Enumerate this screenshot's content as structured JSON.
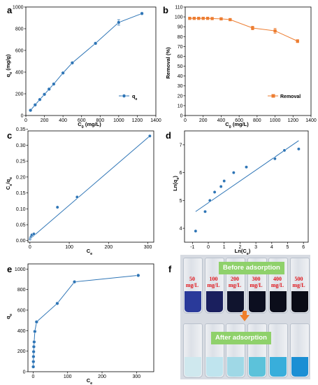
{
  "panels": {
    "a": {
      "letter": "a",
      "xlabel_main": "C",
      "xlabel_sub": "0",
      "xlabel_unit": " (mg/L)",
      "ylabel_main": "q",
      "ylabel_sub": "e",
      "ylabel_unit": " (mg/g)",
      "legend_main": "q",
      "legend_sub": "e"
    },
    "b": {
      "letter": "b",
      "xlabel_main": "C",
      "xlabel_sub": "0",
      "xlabel_unit": " (mg/L)",
      "ylabel": "Removal (%)",
      "legend": "Removal"
    },
    "c": {
      "letter": "c",
      "xlabel_main": "C",
      "xlabel_sub": "e",
      "ylabel_main": "C",
      "ylabel_sub": "e",
      "ylabel_slash": "/q",
      "ylabel_sub2": "e"
    },
    "d": {
      "letter": "d",
      "xlabel": "Ln(C",
      "xlabel_sub": "e",
      "xlabel_end": ")",
      "ylabel": "Ln(q",
      "ylabel_sub": "e",
      "ylabel_end": ")"
    },
    "e": {
      "letter": "e",
      "xlabel_main": "C",
      "xlabel_sub": "e",
      "ylabel_main": "q",
      "ylabel_sub": "e"
    },
    "f": {
      "letter": "f",
      "before_label": "Before adsorption",
      "after_label": "After adsorption",
      "concentrations": [
        "50",
        "100",
        "200",
        "300",
        "400",
        "500"
      ],
      "unit": "mg/L",
      "before_colors": [
        "#2a3a9a",
        "#1a1f5e",
        "#10142e",
        "#0c0f20",
        "#0b0d1a",
        "#0a0c16"
      ],
      "after_colors": [
        "#cfe8ee",
        "#bfe4ee",
        "#9fd8e6",
        "#5cc2da",
        "#38aedb",
        "#1b8fd4"
      ]
    }
  },
  "chart_data": [
    {
      "id": "a",
      "type": "line",
      "x": [
        50,
        100,
        150,
        200,
        250,
        300,
        400,
        500,
        750,
        1000,
        1250
      ],
      "series": [
        {
          "name": "qe",
          "values": [
            48,
            98,
            147,
            195,
            243,
            290,
            392,
            485,
            665,
            858,
            940
          ],
          "err": [
            0,
            0,
            0,
            0,
            0,
            0,
            0,
            0,
            8,
            25,
            10
          ]
        }
      ],
      "xlim": [
        0,
        1400
      ],
      "ylim": [
        0,
        1000
      ],
      "xticks": [
        0,
        200,
        400,
        600,
        800,
        1000,
        1200,
        1400
      ],
      "yticks": [
        0,
        200,
        400,
        600,
        800,
        1000
      ],
      "color": "#2e75b6"
    },
    {
      "id": "b",
      "type": "line",
      "x": [
        50,
        100,
        150,
        200,
        250,
        300,
        400,
        500,
        750,
        1000,
        1250
      ],
      "series": [
        {
          "name": "Removal",
          "values": [
            98.5,
            98.5,
            98.5,
            98.5,
            98.5,
            98.3,
            98.0,
            97.2,
            88.7,
            85.8,
            75.4
          ],
          "err": [
            0,
            0,
            0,
            0,
            0,
            0,
            0,
            0,
            1.8,
            2.5,
            1.5
          ]
        }
      ],
      "xlim": [
        0,
        1400
      ],
      "ylim": [
        0,
        110
      ],
      "xticks": [
        0,
        200,
        400,
        600,
        800,
        1000,
        1200,
        1400
      ],
      "yticks": [
        0,
        10,
        20,
        30,
        40,
        50,
        60,
        70,
        80,
        90,
        100,
        110
      ],
      "color": "#ed7d31"
    },
    {
      "id": "c",
      "type": "scatter",
      "x": [
        0.5,
        1,
        1.5,
        2.5,
        3.5,
        5,
        10,
        70,
        120,
        305
      ],
      "y": [
        0.005,
        0.008,
        0.01,
        0.012,
        0.014,
        0.018,
        0.021,
        0.105,
        0.137,
        0.329
      ],
      "fit": {
        "x": [
          0,
          305
        ],
        "y": [
          0.005,
          0.329
        ]
      },
      "xlim": [
        -5,
        315
      ],
      "ylim": [
        -0.005,
        0.345
      ],
      "xticks": [
        0,
        100,
        200,
        300
      ],
      "yticks": [
        0.0,
        0.05,
        0.1,
        0.15,
        0.2,
        0.25,
        0.3,
        0.35
      ],
      "color": "#2e75b6"
    },
    {
      "id": "d",
      "type": "scatter",
      "x": [
        -0.8,
        -0.2,
        0.1,
        0.4,
        0.8,
        1.0,
        1.6,
        2.4,
        4.2,
        4.8,
        5.7
      ],
      "y": [
        3.9,
        4.6,
        5.0,
        5.3,
        5.5,
        5.7,
        6.0,
        6.2,
        6.5,
        6.8,
        6.85
      ],
      "fit": {
        "x": [
          -0.8,
          5.7
        ],
        "y": [
          4.6,
          7.15
        ]
      },
      "xlim": [
        -1.5,
        6.3
      ],
      "ylim": [
        3.5,
        7.5
      ],
      "xticks": [
        -1,
        0,
        1,
        2,
        3,
        4,
        5,
        6
      ],
      "yticks": [
        4,
        5,
        6,
        7
      ],
      "color": "#2e75b6"
    },
    {
      "id": "e",
      "type": "line",
      "x": [
        0.5,
        0.8,
        1,
        1.5,
        2,
        3,
        5,
        10,
        70,
        120,
        305
      ],
      "y": [
        48,
        98,
        147,
        195,
        243,
        290,
        392,
        485,
        665,
        875,
        938
      ],
      "xlim": [
        -15,
        350
      ],
      "ylim": [
        0,
        1050
      ],
      "xticks": [
        0,
        100,
        200,
        300
      ],
      "yticks": [
        0,
        200,
        400,
        600,
        800,
        1000
      ],
      "color": "#2e75b6"
    }
  ]
}
